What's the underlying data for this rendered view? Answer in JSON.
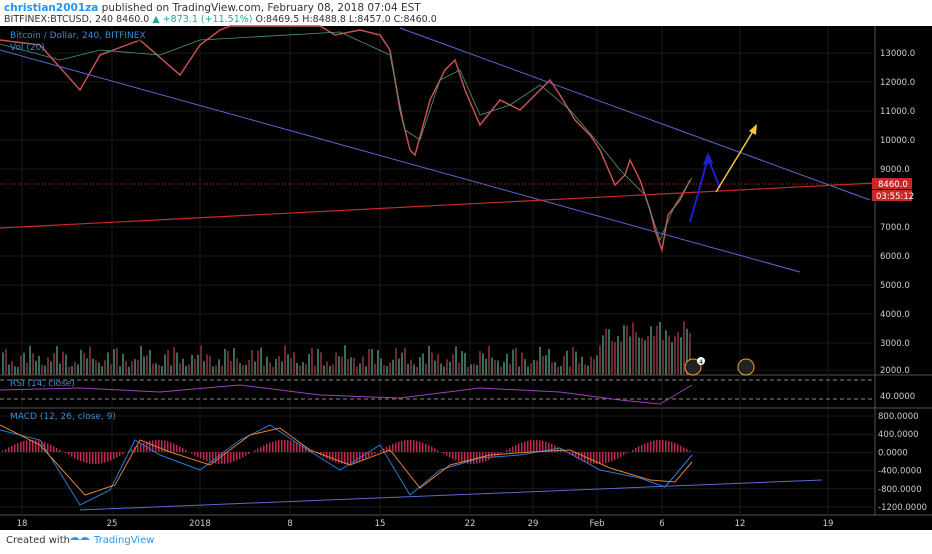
{
  "header": {
    "author": "christian2001za",
    "published": "published on TradingView.com, February 08, 2018 07:04 EST",
    "symbol": "BITFINEX:BTCUSD, 240",
    "last": "8460.0",
    "change": "▲ +873.1 (+11.51%)",
    "ohlc": "O:8469.5 H:8488.8 L:8457.0 C:8460.0"
  },
  "legend": {
    "main": "Bitcoin / Dollar, 240, BITFINEX",
    "volume": "Vol (20)",
    "rsi": "RSI (14, close)",
    "macd": "MACD (12, 26, close, 9)"
  },
  "price_axis": {
    "ticks": [
      "13000.0",
      "12000.0",
      "11000.0",
      "10000.0",
      "9000.0",
      "7000.0",
      "6000.0",
      "5000.0",
      "4000.0",
      "3000.0",
      "2000.0"
    ],
    "last_price": "8460.0",
    "countdown": "03:55:12"
  },
  "rsi_axis": {
    "ticks": [
      "40.0000"
    ]
  },
  "macd_axis": {
    "ticks": [
      "800.0000",
      "400.0000",
      "0.0000",
      "-400.0000",
      "-800.0000",
      "-1200.0000"
    ]
  },
  "time_axis": {
    "ticks": [
      "18",
      "25",
      "2018",
      "8",
      "15",
      "22",
      "29",
      "Feb",
      "6",
      "12",
      "19"
    ]
  },
  "events": {
    "badge": "4"
  },
  "footer": {
    "created": "Created with",
    "brand": "TradingView"
  }
}
